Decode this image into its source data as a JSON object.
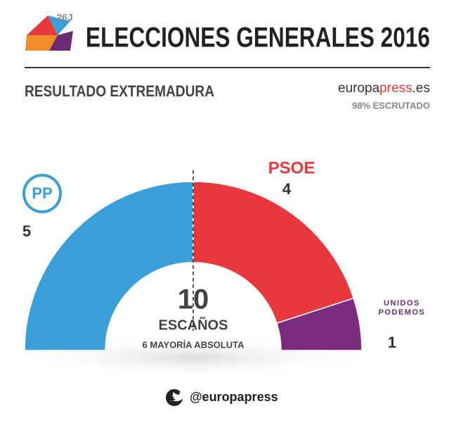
{
  "header": {
    "badge": "26J",
    "title": "ELECCIONES GENERALES 2016"
  },
  "chart_data": {
    "type": "pie",
    "subtitle": "RESULTADO EXTREMADURA",
    "source_parts": [
      "europa",
      "press",
      ".es"
    ],
    "status": "98% ESCRUTADO",
    "total": 10,
    "total_label": "ESCAÑOS",
    "majority_label": "6 MAYORÍA ABSOLUTA",
    "categories": [
      "PP",
      "PSOE",
      "UNIDOS PODEMOS"
    ],
    "colors": [
      "#3a9fd9",
      "#e8383d",
      "#7b2c7f"
    ],
    "values": [
      5,
      4,
      1
    ]
  },
  "footer": {
    "handle": "@europapress"
  }
}
